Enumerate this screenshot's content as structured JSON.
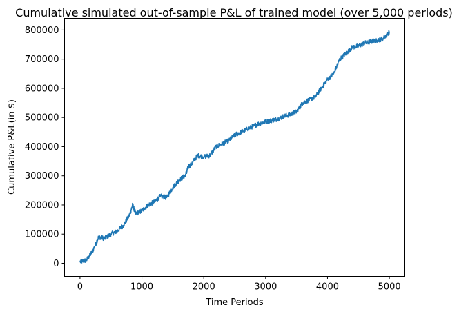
{
  "chart_data": {
    "type": "line",
    "title": "Cumulative simulated out-of-sample P&L of trained model (over 5,000 periods)",
    "xlabel": "Time Periods",
    "ylabel": "Cumulative P&L(in $)",
    "xlim": [
      -250,
      5250
    ],
    "ylim": [
      -45000,
      840000
    ],
    "xticks": [
      0,
      1000,
      2000,
      3000,
      4000,
      5000
    ],
    "xtick_labels": [
      "0",
      "1000",
      "2000",
      "3000",
      "4000",
      "5000"
    ],
    "yticks": [
      0,
      100000,
      200000,
      300000,
      400000,
      500000,
      600000,
      700000,
      800000
    ],
    "ytick_labels": [
      "0",
      "100000",
      "200000",
      "300000",
      "400000",
      "500000",
      "600000",
      "700000",
      "800000"
    ],
    "grid": false,
    "series": [
      {
        "name": "Cumulative P&L",
        "color": "#1f77b4",
        "x": [
          0,
          100,
          200,
          300,
          400,
          500,
          600,
          700,
          800,
          850,
          900,
          1000,
          1100,
          1200,
          1300,
          1400,
          1500,
          1600,
          1700,
          1750,
          1800,
          1900,
          2000,
          2100,
          2200,
          2300,
          2400,
          2500,
          2600,
          2700,
          2800,
          2900,
          3000,
          3100,
          3200,
          3300,
          3400,
          3500,
          3600,
          3700,
          3800,
          3900,
          4000,
          4100,
          4200,
          4300,
          4400,
          4500,
          4600,
          4700,
          4800,
          4900,
          5000
        ],
        "y": [
          5000,
          10000,
          40000,
          90000,
          85000,
          100000,
          110000,
          130000,
          165000,
          200000,
          170000,
          180000,
          200000,
          210000,
          230000,
          225000,
          260000,
          285000,
          300000,
          330000,
          340000,
          370000,
          365000,
          370000,
          400000,
          410000,
          420000,
          440000,
          450000,
          460000,
          470000,
          480000,
          485000,
          490000,
          495000,
          505000,
          510000,
          520000,
          550000,
          560000,
          570000,
          600000,
          630000,
          650000,
          700000,
          720000,
          740000,
          745000,
          755000,
          760000,
          765000,
          770000,
          795000
        ]
      }
    ]
  }
}
